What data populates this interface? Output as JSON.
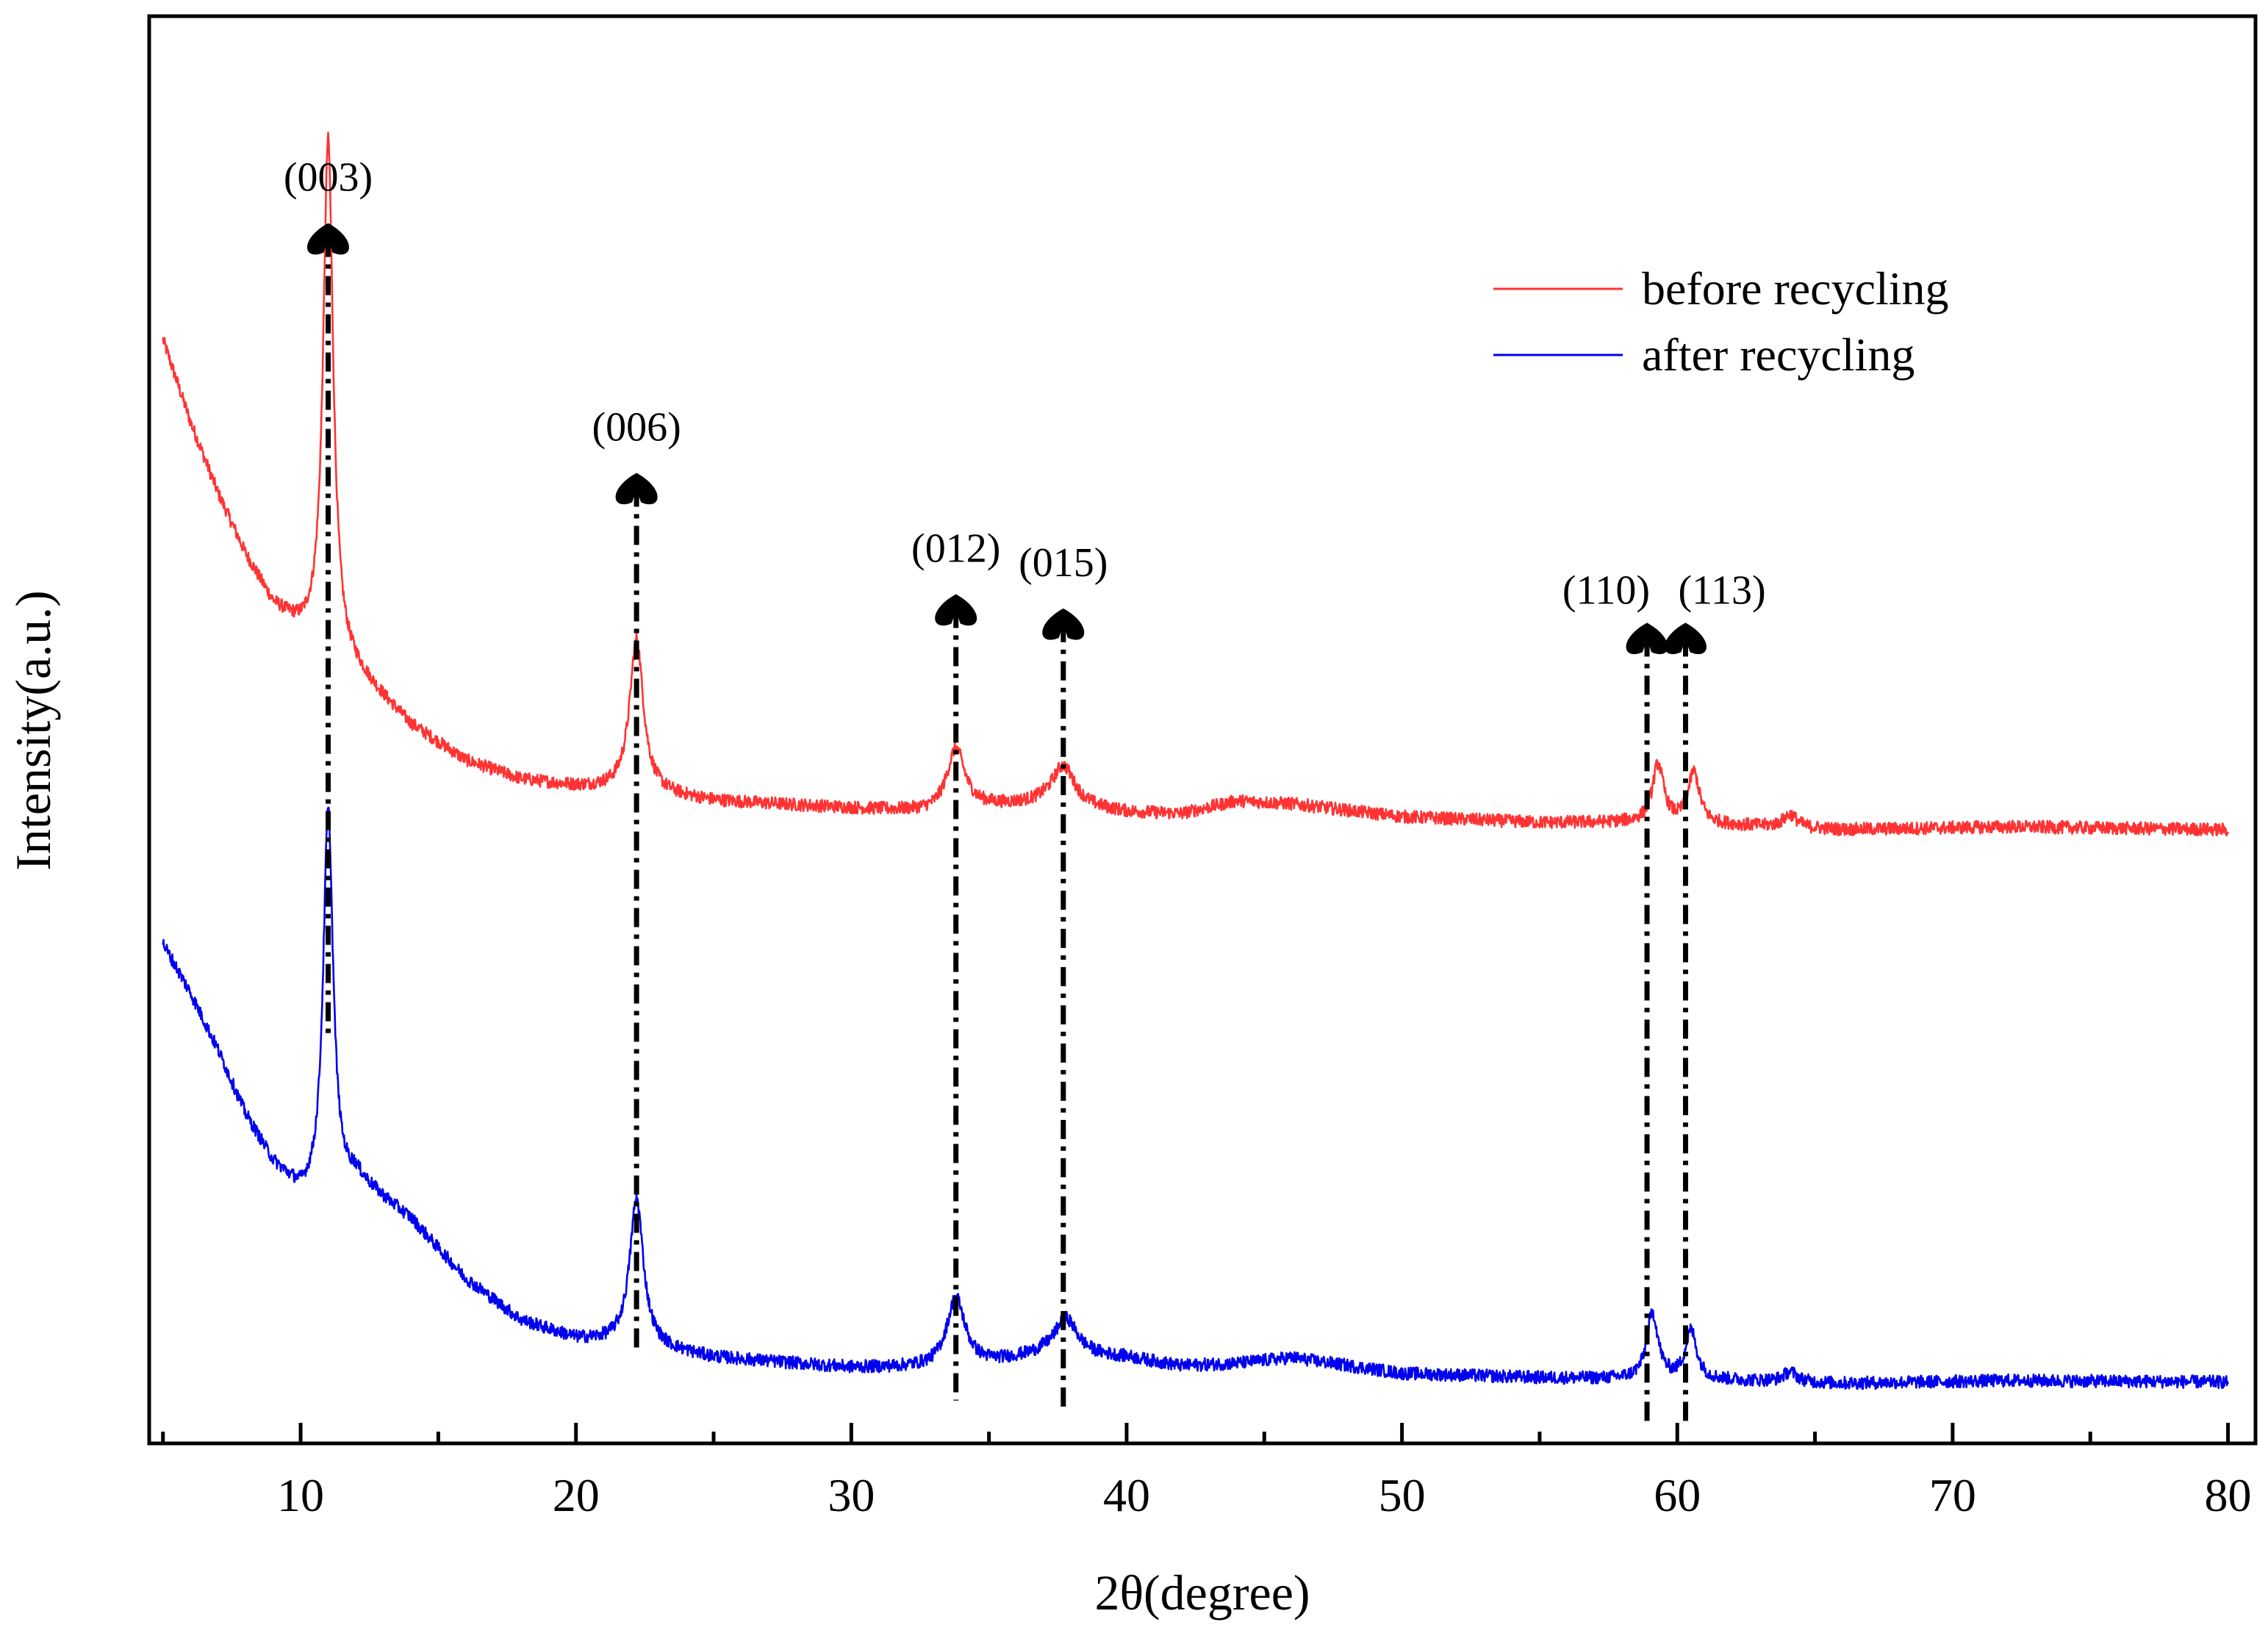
{
  "chart_data": {
    "type": "line",
    "title": "",
    "xlabel": "2θ(degree)",
    "ylabel": "Intensity(a.u.)",
    "xlim": [
      4.5,
      81
    ],
    "ylim": [
      0,
      100
    ],
    "x_ticks": [
      10,
      20,
      30,
      40,
      50,
      60,
      70,
      80
    ],
    "x_tick_labels": [
      "10",
      "20",
      "30",
      "40",
      "50",
      "60",
      "70",
      "80"
    ],
    "y_ticks_shown": false,
    "grid": false,
    "legend_position": "top-right",
    "series": [
      {
        "name": "before recycling",
        "color": "#ff3333",
        "profile": {
          "start": [
            5,
            77.3
          ],
          "background": [
            [
              5,
              77.3
            ],
            [
              6,
              71.5
            ],
            [
              7,
              66.5
            ],
            [
              8,
              62.2
            ],
            [
              9,
              58.7
            ],
            [
              10,
              56.8
            ],
            [
              12,
              54.0
            ],
            [
              14,
              50.3
            ],
            [
              16,
              47.8
            ],
            [
              18,
              46.5
            ],
            [
              20,
              46.0
            ],
            [
              22,
              45.7
            ],
            [
              25,
              45.0
            ],
            [
              30,
              44.5
            ],
            [
              33,
              44.2
            ],
            [
              35,
              44.6
            ],
            [
              37,
              44.8
            ],
            [
              40,
              44.2
            ],
            [
              42,
              44.1
            ],
            [
              44,
              45.0
            ],
            [
              46,
              44.8
            ],
            [
              50,
              43.9
            ],
            [
              55,
              43.5
            ],
            [
              58,
              43.5
            ],
            [
              62,
              43.3
            ],
            [
              66,
              43.0
            ],
            [
              72,
              43.2
            ],
            [
              80,
              43.0
            ]
          ],
          "peaks": [
            {
              "pos": 11.0,
              "height": 36.0,
              "width": 0.22
            },
            {
              "pos": 22.2,
              "height": 10.7,
              "width": 0.3
            },
            {
              "pos": 33.8,
              "height": 4.3,
              "width": 0.4
            },
            {
              "pos": 37.7,
              "height": 2.8,
              "width": 0.5
            },
            {
              "pos": 59.3,
              "height": 4.1,
              "width": 0.25
            },
            {
              "pos": 60.6,
              "height": 3.6,
              "width": 0.25
            },
            {
              "pos": 64.1,
              "height": 0.9,
              "width": 0.3
            }
          ],
          "noise": 0.45
        }
      },
      {
        "name": "after recycling",
        "color": "#0000ee",
        "profile": {
          "start": [
            5,
            35.0
          ],
          "background": [
            [
              5,
              35.0
            ],
            [
              6,
              31.5
            ],
            [
              7,
              27.5
            ],
            [
              8,
              23.0
            ],
            [
              9,
              19.6
            ],
            [
              10,
              17.4
            ],
            [
              11,
              17.0
            ],
            [
              12,
              18.5
            ],
            [
              14,
              15.7
            ],
            [
              16,
              11.5
            ],
            [
              18,
              8.6
            ],
            [
              20,
              7.3
            ],
            [
              22,
              6.9
            ],
            [
              25,
              6.0
            ],
            [
              30,
              5.3
            ],
            [
              33,
              5.3
            ],
            [
              35,
              5.6
            ],
            [
              37,
              6.2
            ],
            [
              40,
              6.0
            ],
            [
              42,
              5.4
            ],
            [
              44,
              5.6
            ],
            [
              46,
              6.0
            ],
            [
              50,
              4.9
            ],
            [
              55,
              4.6
            ],
            [
              58,
              4.5
            ],
            [
              62,
              4.4
            ],
            [
              66,
              4.2
            ],
            [
              72,
              4.4
            ],
            [
              80,
              4.3
            ]
          ],
          "peaks": [
            {
              "pos": 11.0,
              "height": 27.4,
              "width": 0.22
            },
            {
              "pos": 22.2,
              "height": 10.3,
              "width": 0.3
            },
            {
              "pos": 33.8,
              "height": 4.8,
              "width": 0.4
            },
            {
              "pos": 37.8,
              "height": 2.6,
              "width": 0.5
            },
            {
              "pos": 59.1,
              "height": 4.6,
              "width": 0.25
            },
            {
              "pos": 60.5,
              "height": 3.4,
              "width": 0.25
            },
            {
              "pos": 64.1,
              "height": 0.7,
              "width": 0.3
            }
          ],
          "noise": 0.45
        }
      }
    ],
    "annotations": [
      {
        "label": "(003)",
        "x": 11.0,
        "arrow_top": 85.5,
        "line_bottom": 28.5
      },
      {
        "label": "(006)",
        "x": 22.2,
        "arrow_top": 68.0,
        "line_bottom": 6.5
      },
      {
        "label": "(012)",
        "x": 33.8,
        "arrow_top": 59.5,
        "line_bottom": 3.0
      },
      {
        "label": "(015)",
        "x": 37.7,
        "arrow_top": 58.5,
        "line_bottom": 2.2
      },
      {
        "label": "(110)",
        "x": 58.9,
        "arrow_top": 57.5,
        "line_bottom": 1.5
      },
      {
        "label": "(113)",
        "x": 60.3,
        "arrow_top": 57.5,
        "line_bottom": 1.5
      }
    ]
  }
}
